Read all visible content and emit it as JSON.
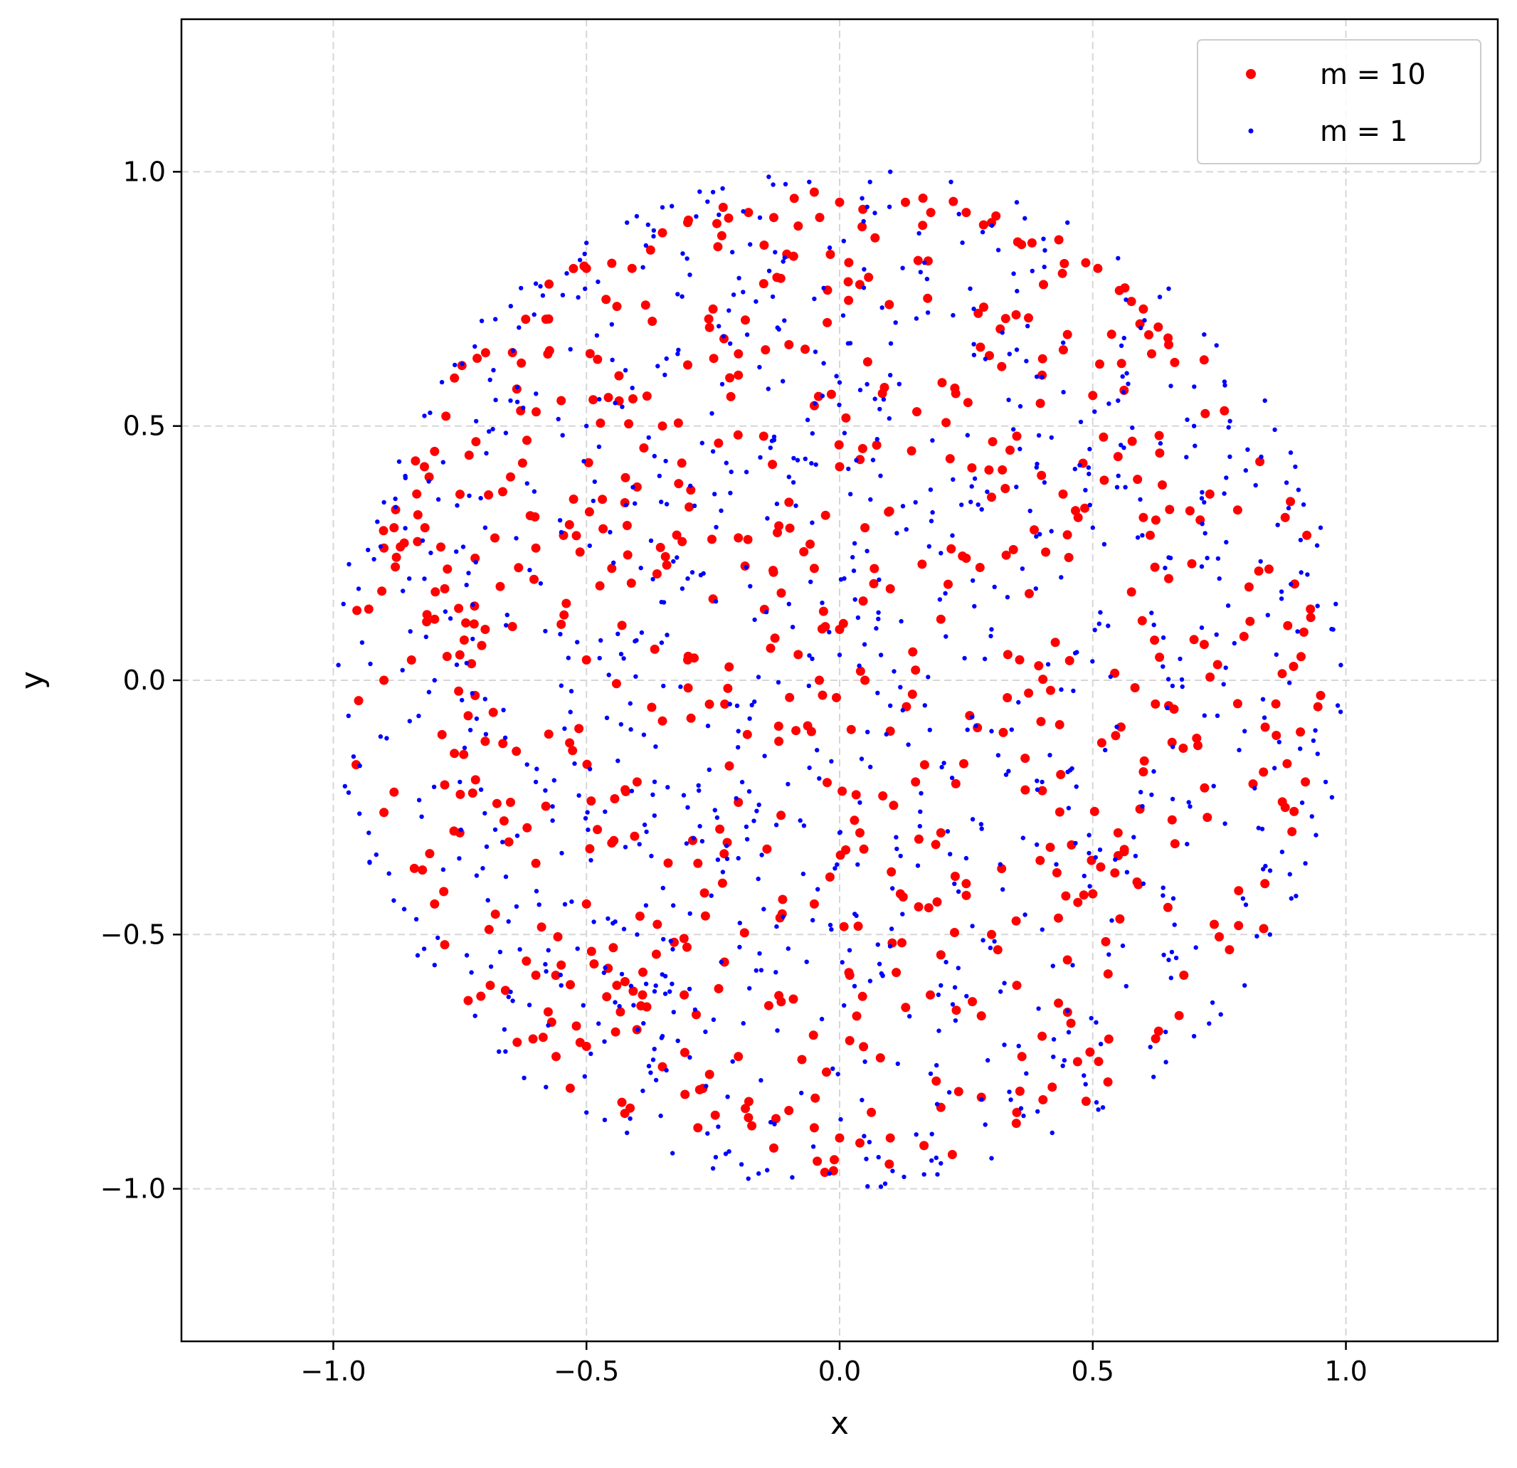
{
  "chart_data": {
    "type": "scatter",
    "title": "",
    "xlabel": "x",
    "ylabel": "y",
    "xlim": [
      -1.3,
      1.3
    ],
    "ylim": [
      -1.3,
      1.3
    ],
    "xticks": [
      -1.0,
      -0.5,
      0.0,
      0.5,
      1.0
    ],
    "yticks": [
      -1.0,
      -0.5,
      0.0,
      0.5,
      1.0
    ],
    "xtick_labels": [
      "−1.0",
      "−0.5",
      "0.0",
      "0.5",
      "1.0"
    ],
    "ytick_labels": [
      "−1.0",
      "−0.5",
      "0.0",
      "0.5",
      "1.0"
    ],
    "grid": true,
    "grid_style": "dashed",
    "legend_position": "top-right",
    "series": [
      {
        "name": "m = 10",
        "color": "#ff0000",
        "marker": "large-dot",
        "distribution": "uniform-disk",
        "radius": 0.97,
        "point_count": 700,
        "points": [
          [
            -0.93,
            0.14
          ],
          [
            -0.9,
            0.26
          ],
          [
            -0.88,
            0.3
          ],
          [
            -0.86,
            0.27
          ],
          [
            -0.82,
            0.42
          ],
          [
            -0.8,
            0.45
          ],
          [
            -0.78,
            0.18
          ],
          [
            -0.75,
            0.05
          ],
          [
            -0.72,
            -0.03
          ],
          [
            -0.7,
            0.1
          ],
          [
            -0.65,
            0.4
          ],
          [
            -0.63,
            0.53
          ],
          [
            -0.62,
            0.71
          ],
          [
            -0.58,
            0.71
          ],
          [
            -0.55,
            0.55
          ],
          [
            -0.5,
            0.81
          ],
          [
            -0.45,
            0.82
          ],
          [
            -0.41,
            0.81
          ],
          [
            -0.35,
            0.88
          ],
          [
            -0.3,
            0.9
          ],
          [
            -0.23,
            0.93
          ],
          [
            -0.18,
            0.92
          ],
          [
            -0.13,
            0.91
          ],
          [
            -0.05,
            0.96
          ],
          [
            0.0,
            0.94
          ],
          [
            0.07,
            0.87
          ],
          [
            0.13,
            0.94
          ],
          [
            0.18,
            0.92
          ],
          [
            0.25,
            0.92
          ],
          [
            0.3,
            0.9
          ],
          [
            0.38,
            0.86
          ],
          [
            0.44,
            0.8
          ],
          [
            0.51,
            0.81
          ],
          [
            0.6,
            0.73
          ],
          [
            0.65,
            0.66
          ],
          [
            0.72,
            0.63
          ],
          [
            0.76,
            0.53
          ],
          [
            0.83,
            0.43
          ],
          [
            0.88,
            0.32
          ],
          [
            0.93,
            0.14
          ],
          [
            0.95,
            -0.03
          ],
          [
            0.92,
            -0.2
          ],
          [
            0.88,
            -0.25
          ],
          [
            0.84,
            -0.4
          ],
          [
            0.77,
            -0.53
          ],
          [
            0.74,
            -0.48
          ],
          [
            0.68,
            -0.58
          ],
          [
            0.63,
            -0.69
          ],
          [
            0.53,
            -0.79
          ],
          [
            0.47,
            -0.75
          ],
          [
            0.42,
            -0.8
          ],
          [
            0.35,
            -0.85
          ],
          [
            0.28,
            -0.82
          ],
          [
            0.2,
            -0.84
          ],
          [
            0.1,
            -0.9
          ],
          [
            0.04,
            -0.91
          ],
          [
            0.0,
            -0.9
          ],
          [
            -0.05,
            -0.88
          ],
          [
            -0.13,
            -0.92
          ],
          [
            -0.18,
            -0.86
          ],
          [
            -0.28,
            -0.88
          ],
          [
            -0.35,
            -0.76
          ],
          [
            -0.43,
            -0.83
          ],
          [
            -0.5,
            -0.72
          ],
          [
            -0.56,
            -0.74
          ],
          [
            -0.66,
            -0.61
          ],
          [
            -0.69,
            -0.6
          ],
          [
            -0.78,
            -0.52
          ],
          [
            -0.8,
            -0.44
          ],
          [
            -0.84,
            -0.37
          ],
          [
            -0.88,
            -0.22
          ],
          [
            -0.9,
            -0.26
          ],
          [
            -0.95,
            -0.04
          ],
          [
            -0.9,
            0.0
          ],
          [
            -0.8,
            0.12
          ],
          [
            -0.72,
            0.24
          ],
          [
            -0.6,
            0.26
          ],
          [
            -0.55,
            0.11
          ],
          [
            -0.5,
            0.04
          ],
          [
            -0.45,
            0.22
          ],
          [
            -0.4,
            0.38
          ],
          [
            -0.35,
            0.5
          ],
          [
            -0.3,
            0.62
          ],
          [
            -0.25,
            0.73
          ],
          [
            -0.2,
            0.6
          ],
          [
            -0.15,
            0.48
          ],
          [
            -0.1,
            0.35
          ],
          [
            -0.05,
            0.22
          ],
          [
            0.0,
            0.1
          ],
          [
            0.05,
            0.0
          ],
          [
            0.1,
            -0.1
          ],
          [
            0.15,
            -0.2
          ],
          [
            0.2,
            -0.3
          ],
          [
            0.25,
            -0.4
          ],
          [
            0.3,
            -0.5
          ],
          [
            0.35,
            -0.6
          ],
          [
            0.4,
            -0.7
          ],
          [
            0.45,
            -0.55
          ],
          [
            0.5,
            -0.42
          ],
          [
            0.55,
            -0.3
          ],
          [
            0.6,
            -0.18
          ],
          [
            0.65,
            -0.05
          ],
          [
            0.7,
            0.08
          ],
          [
            0.65,
            0.2
          ],
          [
            0.6,
            0.32
          ],
          [
            0.55,
            0.44
          ],
          [
            0.5,
            0.56
          ],
          [
            0.45,
            0.68
          ],
          [
            0.4,
            0.6
          ],
          [
            0.35,
            0.48
          ],
          [
            0.3,
            0.36
          ],
          [
            0.25,
            0.24
          ],
          [
            0.2,
            0.12
          ],
          [
            0.15,
            0.02
          ],
          [
            0.1,
            0.18
          ],
          [
            0.05,
            0.3
          ],
          [
            0.0,
            0.42
          ],
          [
            -0.05,
            0.54
          ],
          [
            -0.1,
            0.66
          ],
          [
            -0.15,
            0.78
          ],
          [
            -0.2,
            0.28
          ],
          [
            -0.25,
            0.16
          ],
          [
            -0.3,
            0.04
          ],
          [
            -0.35,
            -0.08
          ],
          [
            -0.4,
            -0.2
          ],
          [
            -0.45,
            -0.32
          ],
          [
            -0.5,
            -0.44
          ],
          [
            -0.55,
            -0.56
          ],
          [
            -0.6,
            -0.36
          ],
          [
            -0.65,
            -0.24
          ],
          [
            -0.7,
            -0.12
          ],
          [
            -0.75,
            -0.3
          ],
          [
            -0.68,
            -0.46
          ],
          [
            -0.6,
            -0.58
          ],
          [
            -0.52,
            -0.68
          ],
          [
            -0.44,
            -0.6
          ],
          [
            -0.36,
            -0.48
          ],
          [
            -0.28,
            -0.36
          ],
          [
            -0.2,
            -0.24
          ],
          [
            -0.12,
            -0.12
          ],
          [
            -0.04,
            0.0
          ],
          [
            0.04,
            -0.3
          ],
          [
            0.12,
            -0.42
          ],
          [
            0.2,
            -0.54
          ],
          [
            0.28,
            -0.66
          ],
          [
            0.36,
            -0.74
          ],
          [
            -0.12,
            -0.62
          ],
          [
            -0.2,
            -0.74
          ],
          [
            -0.05,
            -0.44
          ],
          [
            0.02,
            -0.58
          ]
        ]
      },
      {
        "name": "m = 1",
        "color": "#0000ff",
        "marker": "small-dot",
        "distribution": "uniform-disk",
        "radius": 1.0,
        "point_count": 1000,
        "points": [
          [
            -0.99,
            0.03
          ],
          [
            -0.98,
            0.15
          ],
          [
            -0.97,
            -0.07
          ],
          [
            -0.96,
            -0.15
          ],
          [
            -0.95,
            0.18
          ],
          [
            -0.93,
            -0.3
          ],
          [
            -0.9,
            0.35
          ],
          [
            -0.89,
            -0.38
          ],
          [
            -0.87,
            0.43
          ],
          [
            -0.86,
            -0.45
          ],
          [
            -0.82,
            0.52
          ],
          [
            -0.8,
            -0.56
          ],
          [
            -0.76,
            0.62
          ],
          [
            -0.72,
            -0.66
          ],
          [
            -0.68,
            0.71
          ],
          [
            -0.66,
            -0.73
          ],
          [
            -0.6,
            0.78
          ],
          [
            -0.58,
            -0.8
          ],
          [
            -0.5,
            0.86
          ],
          [
            -0.5,
            -0.85
          ],
          [
            -0.42,
            0.9
          ],
          [
            -0.42,
            -0.89
          ],
          [
            -0.35,
            0.93
          ],
          [
            -0.33,
            -0.93
          ],
          [
            -0.25,
            0.96
          ],
          [
            -0.25,
            -0.96
          ],
          [
            -0.14,
            0.99
          ],
          [
            -0.16,
            -0.97
          ],
          [
            -0.06,
            0.98
          ],
          [
            -0.02,
            -0.97
          ],
          [
            0.06,
            0.98
          ],
          [
            0.09,
            -0.99
          ],
          [
            0.1,
            1.0
          ],
          [
            0.2,
            -0.95
          ],
          [
            0.22,
            0.98
          ],
          [
            0.3,
            -0.94
          ],
          [
            0.35,
            0.94
          ],
          [
            0.42,
            -0.89
          ],
          [
            0.45,
            0.9
          ],
          [
            0.52,
            -0.84
          ],
          [
            0.55,
            0.83
          ],
          [
            0.62,
            -0.78
          ],
          [
            0.65,
            0.77
          ],
          [
            0.7,
            -0.7
          ],
          [
            0.72,
            0.68
          ],
          [
            0.8,
            -0.6
          ],
          [
            0.84,
            0.55
          ],
          [
            0.85,
            -0.5
          ],
          [
            0.9,
            0.42
          ],
          [
            0.92,
            -0.36
          ],
          [
            0.95,
            0.3
          ],
          [
            0.96,
            -0.2
          ],
          [
            0.98,
            0.15
          ],
          [
            0.99,
            0.03
          ],
          [
            -0.8,
            0.0
          ],
          [
            -0.7,
            0.3
          ],
          [
            -0.6,
            -0.2
          ],
          [
            -0.5,
            0.5
          ],
          [
            -0.4,
            -0.5
          ],
          [
            -0.3,
            0.2
          ],
          [
            -0.2,
            -0.1
          ],
          [
            -0.1,
            0.4
          ],
          [
            0.0,
            -0.3
          ],
          [
            0.1,
            0.6
          ],
          [
            0.2,
            -0.6
          ],
          [
            0.3,
            0.1
          ],
          [
            0.4,
            -0.2
          ],
          [
            0.5,
            0.3
          ],
          [
            0.6,
            -0.4
          ],
          [
            0.7,
            0.5
          ],
          [
            0.8,
            -0.1
          ],
          [
            0.75,
            0.2
          ],
          [
            -0.75,
            -0.2
          ],
          [
            -0.65,
            0.55
          ],
          [
            -0.55,
            -0.6
          ],
          [
            -0.45,
            0.7
          ],
          [
            -0.35,
            -0.7
          ],
          [
            -0.25,
            0.45
          ],
          [
            -0.15,
            -0.45
          ],
          [
            -0.05,
            0.75
          ],
          [
            0.05,
            -0.75
          ],
          [
            0.15,
            0.35
          ],
          [
            0.25,
            -0.35
          ],
          [
            0.35,
            0.65
          ],
          [
            0.45,
            -0.65
          ],
          [
            0.55,
            0.55
          ],
          [
            0.65,
            -0.55
          ],
          [
            0.72,
            0.35
          ],
          [
            -0.85,
            0.2
          ],
          [
            -0.3,
            -0.25
          ],
          [
            0.0,
            0.05
          ],
          [
            0.1,
            -0.05
          ],
          [
            -0.1,
            0.15
          ],
          [
            0.2,
            0.25
          ],
          [
            -0.2,
            -0.35
          ],
          [
            0.3,
            -0.1
          ]
        ]
      }
    ]
  }
}
